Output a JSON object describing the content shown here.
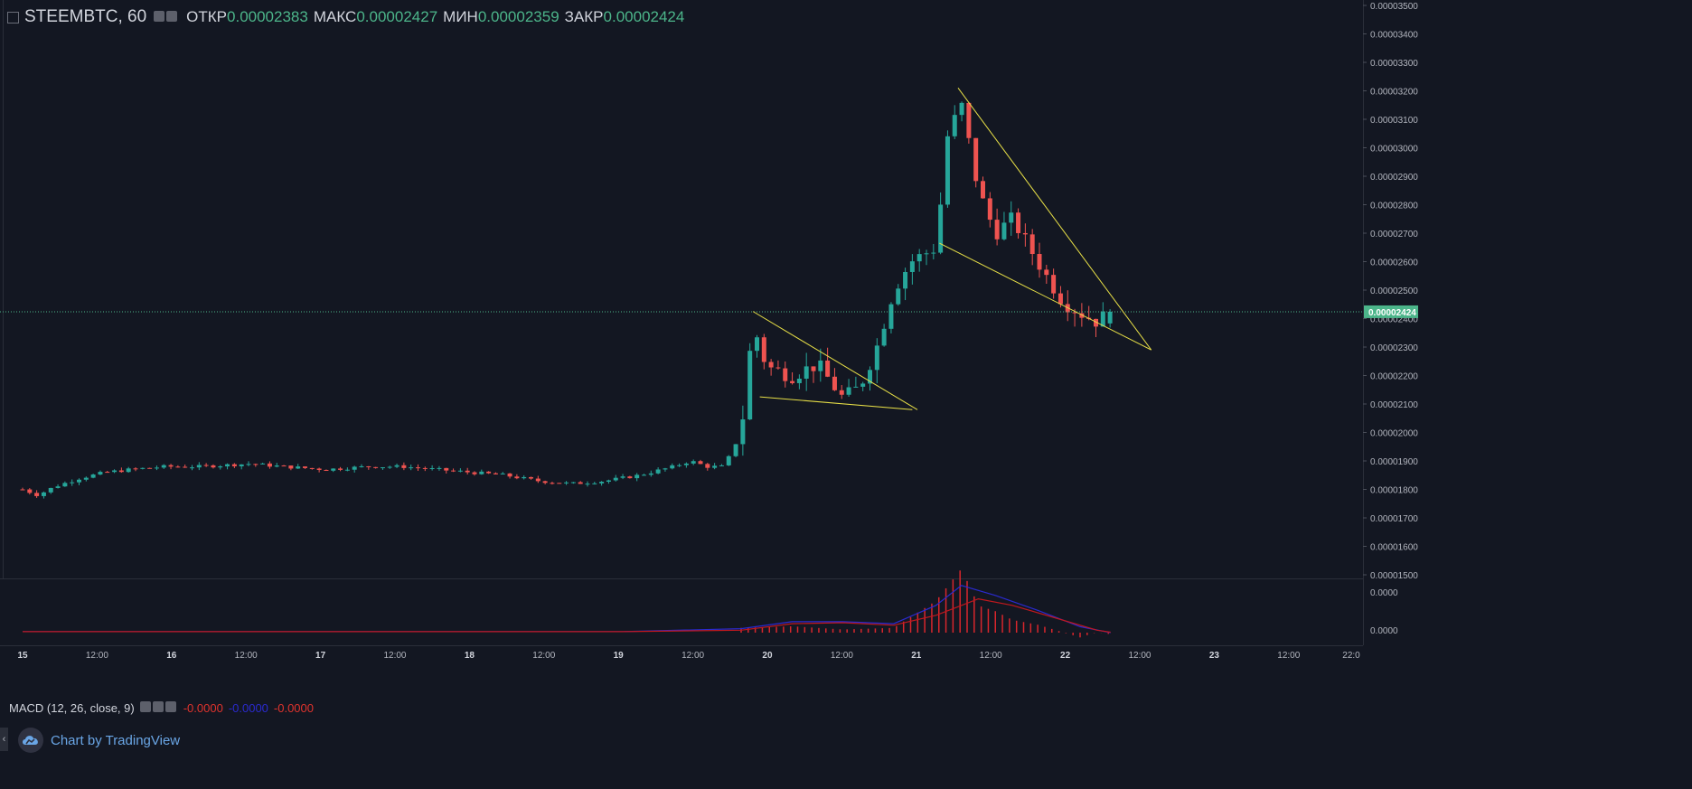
{
  "legend": {
    "symbol": "STEEMBTC, 60",
    "open_label": "ОТКР",
    "open_value": "0.00002383",
    "high_label": "МАКС",
    "high_value": "0.00002427",
    "low_label": "МИН",
    "low_value": "0.00002359",
    "close_label": "ЗАКР",
    "close_value": "0.00002424"
  },
  "macd": {
    "title": "MACD (12, 26, close, 9)",
    "hist_value": "-0.0000",
    "macd_value": "-0.0000",
    "signal_value": "-0.0000",
    "axis_labels": [
      "0.0000",
      "0.0000"
    ]
  },
  "branding": {
    "label": "Chart by TradingView"
  },
  "colors": {
    "background": "#131722",
    "up": "#26a69a",
    "down": "#ef5350",
    "price_line": "#4cb58a",
    "macd_line": "#2a2acf",
    "signal_line": "#c0181e",
    "pattern": "#e8e047"
  },
  "chart_data": {
    "type": "candlestick",
    "symbol": "STEEMBTC",
    "interval": "60",
    "last_price": "0.00002424",
    "y_range": [
      1.49e-05,
      3.51e-05
    ],
    "y_ticks": [
      "0.00003500",
      "0.00003400",
      "0.00003300",
      "0.00003200",
      "0.00003100",
      "0.00003000",
      "0.00002900",
      "0.00002800",
      "0.00002700",
      "0.00002600",
      "0.00002500",
      "0.00002400",
      "0.00002300",
      "0.00002200",
      "0.00002100",
      "0.00002000",
      "0.00001900",
      "0.00001800",
      "0.00001700",
      "0.00001600",
      "0.00001500"
    ],
    "x_ticks": [
      "15",
      "12:00",
      "16",
      "12:00",
      "17",
      "12:00",
      "18",
      "12:00",
      "19",
      "12:00",
      "20",
      "12:00",
      "21",
      "12:00",
      "22",
      "12:00",
      "23",
      "12:00",
      "22:0"
    ],
    "segments": [
      [
        14.96,
        1.8e-05
      ],
      [
        15.05,
        1.78e-05
      ],
      [
        15.15,
        1.81e-05
      ],
      [
        15.3,
        1.84e-05
      ],
      [
        15.45,
        1.86e-05
      ],
      [
        15.6,
        1.87e-05
      ],
      [
        15.8,
        1.88e-05
      ],
      [
        16.0,
        1.88e-05
      ],
      [
        16.3,
        1.89e-05
      ],
      [
        16.5,
        1.88e-05
      ],
      [
        16.75,
        1.87e-05
      ],
      [
        17.0,
        1.88e-05
      ],
      [
        17.2,
        1.88e-05
      ],
      [
        17.4,
        1.87e-05
      ],
      [
        17.6,
        1.86e-05
      ],
      [
        17.8,
        1.85e-05
      ],
      [
        18.0,
        1.83e-05
      ],
      [
        18.2,
        1.82e-05
      ],
      [
        18.4,
        1.83e-05
      ],
      [
        18.6,
        1.85e-05
      ],
      [
        18.8,
        1.88e-05
      ],
      [
        18.9,
        1.9e-05
      ],
      [
        19.0,
        1.88e-05
      ],
      [
        19.1,
        1.88e-05
      ],
      [
        19.2,
        2e-05
      ],
      [
        19.27,
        2.38e-05
      ],
      [
        19.35,
        2.23e-05
      ],
      [
        19.5,
        2.2e-05
      ],
      [
        19.65,
        2.24e-05
      ],
      [
        19.8,
        2.12e-05
      ],
      [
        19.9,
        2.16e-05
      ],
      [
        20.0,
        2.3e-05
      ],
      [
        20.1,
        2.5e-05
      ],
      [
        20.2,
        2.6e-05
      ],
      [
        20.35,
        2.65e-05
      ],
      [
        20.42,
        3.05e-05
      ],
      [
        20.5,
        3.15e-05
      ],
      [
        20.6,
        2.85e-05
      ],
      [
        20.7,
        2.7e-05
      ],
      [
        20.8,
        2.75e-05
      ],
      [
        20.9,
        2.65e-05
      ],
      [
        21.0,
        2.55e-05
      ],
      [
        21.1,
        2.46e-05
      ],
      [
        21.2,
        2.42e-05
      ],
      [
        21.3,
        2.39e-05
      ],
      [
        21.38,
        2.424e-05
      ]
    ],
    "annotations": [
      {
        "type": "falling-wedge",
        "upper": [
          [
            19.27,
            2.425e-05
          ],
          [
            20.24,
            2.08e-05
          ]
        ],
        "lower": [
          [
            19.31,
            2.125e-05
          ],
          [
            20.21,
            2.08e-05
          ]
        ]
      },
      {
        "type": "falling-wedge",
        "upper": [
          [
            20.48,
            3.21e-05
          ],
          [
            21.62,
            2.29e-05
          ]
        ],
        "lower": [
          [
            20.37,
            2.665e-05
          ],
          [
            21.62,
            2.29e-05
          ]
        ]
      }
    ],
    "macd_series": {
      "macd_line": [
        [
          14.96,
          0.02
        ],
        [
          17.5,
          0.02
        ],
        [
          18.5,
          0.02
        ],
        [
          19.2,
          0.08
        ],
        [
          19.5,
          0.22
        ],
        [
          19.8,
          0.22
        ],
        [
          20.1,
          0.18
        ],
        [
          20.35,
          0.55
        ],
        [
          20.5,
          0.95
        ],
        [
          20.7,
          0.75
        ],
        [
          20.95,
          0.45
        ],
        [
          21.2,
          0.12
        ],
        [
          21.38,
          0.0
        ]
      ],
      "signal_line": [
        [
          14.96,
          0.02
        ],
        [
          17.5,
          0.02
        ],
        [
          18.5,
          0.02
        ],
        [
          19.2,
          0.05
        ],
        [
          19.5,
          0.18
        ],
        [
          19.8,
          0.2
        ],
        [
          20.1,
          0.15
        ],
        [
          20.35,
          0.35
        ],
        [
          20.6,
          0.68
        ],
        [
          20.8,
          0.55
        ],
        [
          21.05,
          0.3
        ],
        [
          21.3,
          0.05
        ],
        [
          21.38,
          0.01
        ]
      ],
      "histogram_range": [
        19.2,
        21.38
      ]
    }
  }
}
